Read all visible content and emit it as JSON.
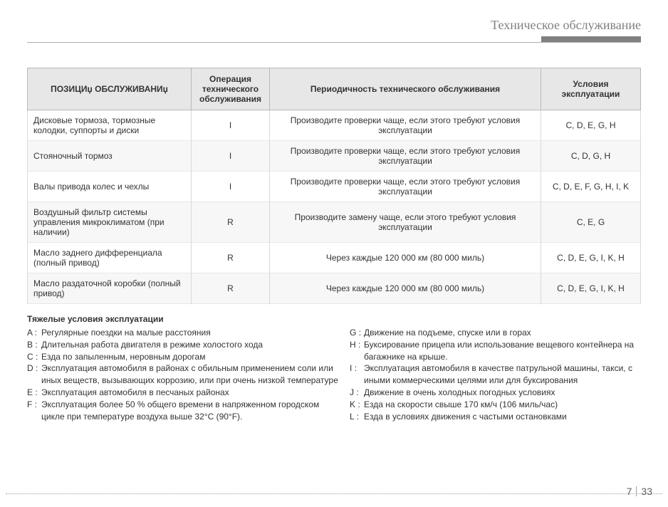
{
  "header": {
    "section_title": "Техническое обслуживание"
  },
  "table": {
    "columns": {
      "position": "ПОЗИЦИџ ОБСЛУЖИВАНИџ",
      "operation": "Операция технического обслуживания",
      "periodicity": "Периодичность технического обслуживания",
      "conditions": "Условия эксплуатации"
    },
    "rows": [
      {
        "position": "Дисковые тормоза, тормозные колодки, суппорты и диски",
        "operation": "I",
        "periodicity": "Производите проверки чаще, если этого требуют условия эксплуатации",
        "conditions": "C, D, E, G, H"
      },
      {
        "position": "Стояночный тормоз",
        "operation": "I",
        "periodicity": "Производите проверки чаще, если этого требуют условия эксплуатации",
        "conditions": "C, D, G, H"
      },
      {
        "position": "Валы привода колес и чехлы",
        "operation": "I",
        "periodicity": "Производите проверки чаще, если этого требуют условия эксплуатации",
        "conditions": "C, D, E, F, G, H, I, K"
      },
      {
        "position": "Воздушный фильтр системы управления микроклиматом (при наличии)",
        "operation": "R",
        "periodicity": "Производите замену чаще, если этого требуют условия эксплуатации",
        "conditions": "C, E, G"
      },
      {
        "position": "Масло заднего дифференциала (полный привод)",
        "operation": "R",
        "periodicity": "Через каждые 120 000 км (80 000 миль)",
        "conditions": "C, D, E, G, I, K, H"
      },
      {
        "position": "Масло раздаточной коробки (полный привод)",
        "operation": "R",
        "periodicity": "Через каждые 120 000 км (80 000 миль)",
        "conditions": "C, D, E, G, I, K, H"
      }
    ]
  },
  "severe": {
    "title": "Тяжелые условия эксплуатации",
    "left": [
      {
        "k": "A :",
        "t": "Регулярные поездки на малые расстояния"
      },
      {
        "k": "B :",
        "t": "Длительная работа двигателя в режиме холостого хода"
      },
      {
        "k": "C :",
        "t": "Езда по запыленным, неровным дорогам"
      },
      {
        "k": "D :",
        "t": "Эксплуатация автомобиля в районах с обильным применением соли или иных веществ, вызывающих коррозию, или при очень низкой температуре"
      },
      {
        "k": "E :",
        "t": "Эксплуатация автомобиля в песчаных районах"
      },
      {
        "k": "F :",
        "t": "Эксплуатация более 50 % общего времени в напряженном городском цикле при температуре воздуха выше 32°C (90°F)."
      }
    ],
    "right": [
      {
        "k": "G :",
        "t": "Движение на подъеме, спуске или в горах"
      },
      {
        "k": "H :",
        "t": "Буксирование прицепа или использование вещевого контейнера на багажнике на крыше."
      },
      {
        "k": "I :",
        "t": "Эксплуатация автомобиля в качестве патрульной машины, такси, с иными коммерческими целями или для буксирования"
      },
      {
        "k": "J :",
        "t": "Движение в очень холодных погодных условиях"
      },
      {
        "k": "K :",
        "t": "Езда на скорости свыше 170 км/ч (106 миль/час)"
      },
      {
        "k": "L :",
        "t": "Езда в условиях движения с частыми остановками"
      }
    ]
  },
  "footer": {
    "page_major": "7",
    "page_minor": "33"
  },
  "style": {
    "header_bar_color": "#808080",
    "table_header_bg": "#e7e7e7",
    "border_color": "#b8b8b8",
    "row_alt_bg": "#f7f7f7",
    "font_size_table": 12,
    "font_size_title": 18
  }
}
